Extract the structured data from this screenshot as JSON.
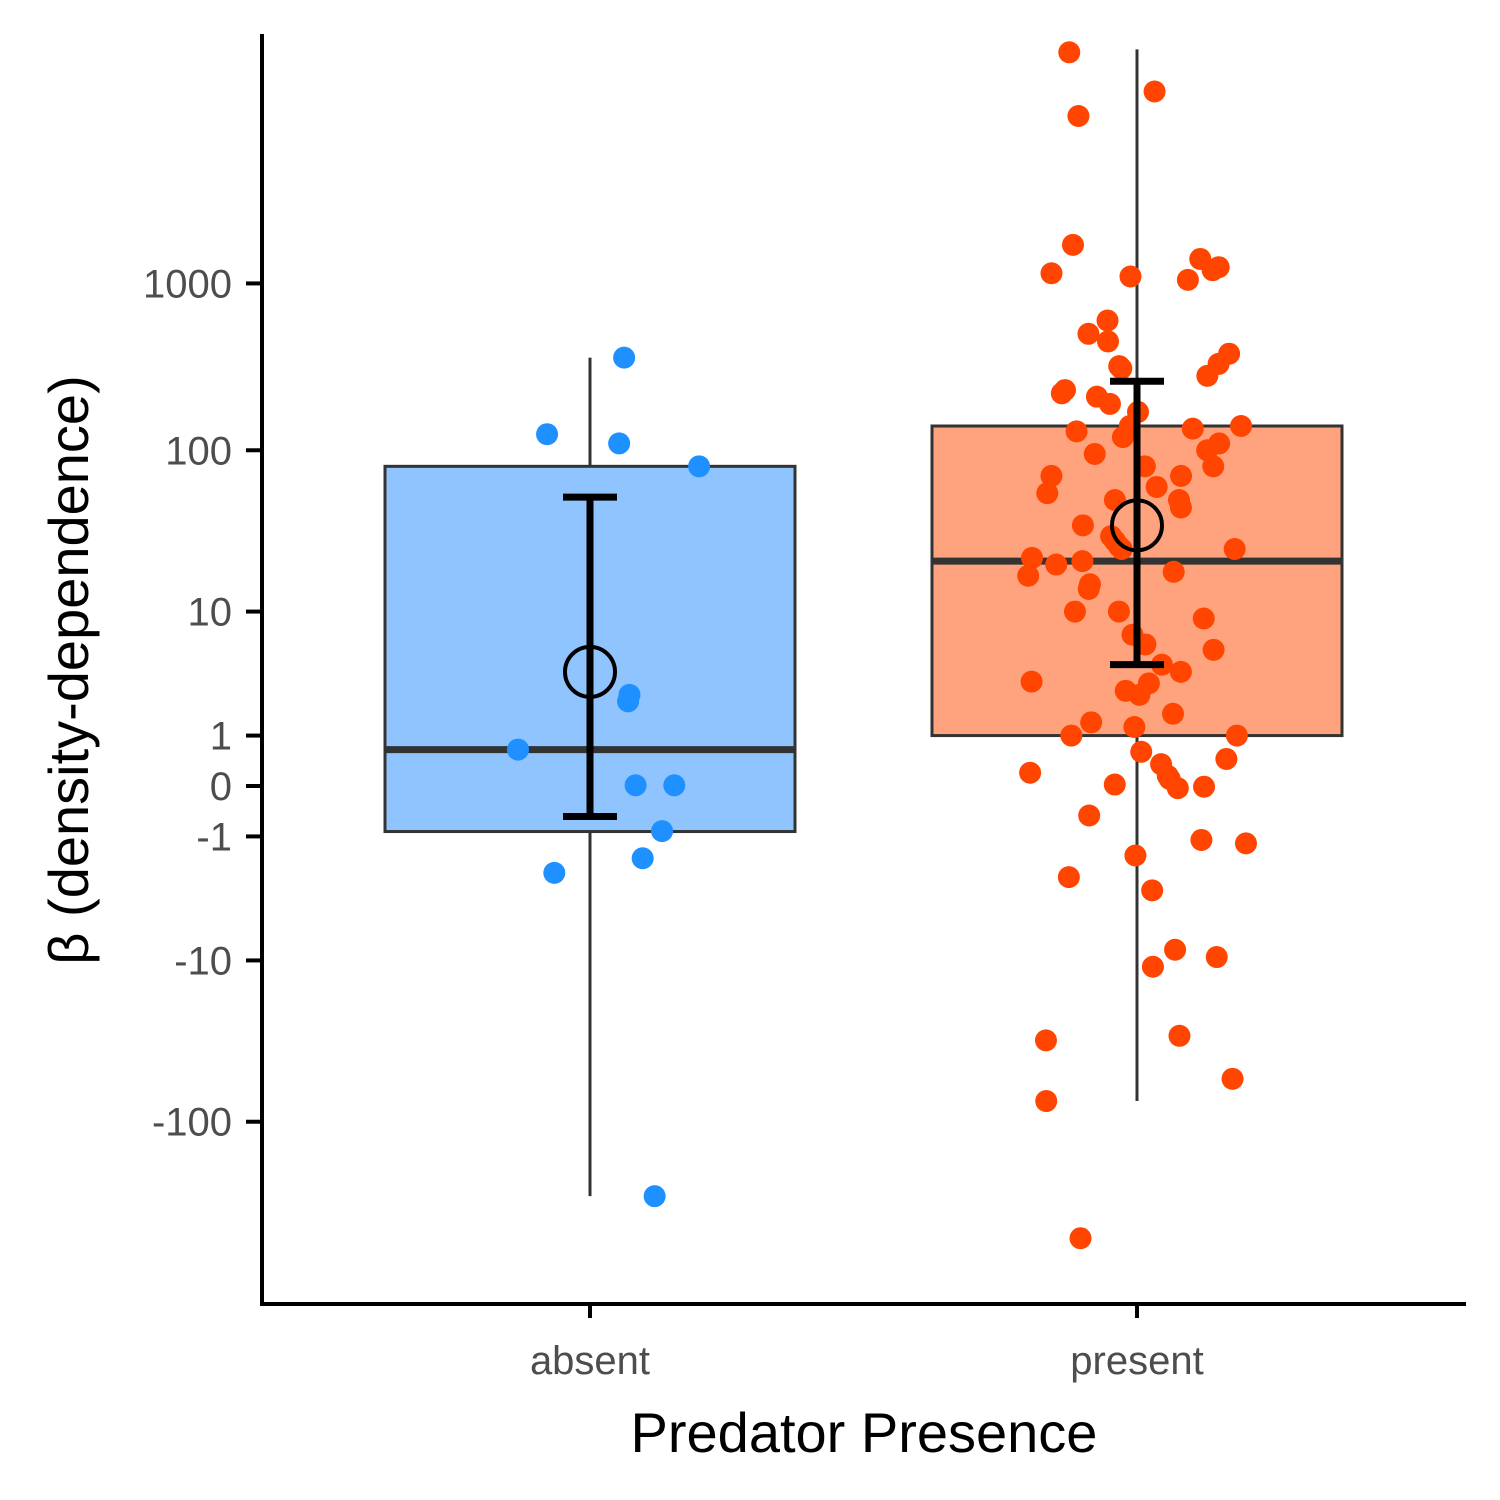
{
  "chart_data": {
    "type": "boxplot",
    "xlabel": "Predator Presence",
    "ylabel": "β (density-dependence)",
    "y_scale": "pseudo-log (signed log10(1+|y|))",
    "categories": [
      "absent",
      "present"
    ],
    "y_ticks": [
      -100,
      -10,
      -1,
      0,
      1,
      10,
      100,
      1000
    ],
    "y_tick_labels": [
      "-100",
      "-10",
      "-1",
      "0",
      "1",
      "10",
      "100",
      "1000"
    ],
    "ylim": [
      -600,
      30000
    ],
    "grid": false,
    "legend": "none",
    "colors": {
      "absent_fill": "#8fc4fe",
      "absent_points": "#1e90ff",
      "present_fill": "#ffa37f",
      "present_points": "#ff4500",
      "box_line": "#333333",
      "mean_error": "#000000"
    },
    "groups": [
      {
        "name": "absent",
        "box": {
          "whisker_low": -280,
          "q1": -0.87,
          "median": 0.65,
          "q3": 80,
          "whisker_high": 360
        },
        "mean": 3.8,
        "error_bar": [
          -0.52,
          52
        ],
        "points": [
          360,
          125,
          110,
          80,
          2.5,
          2.2,
          0.65,
          0.01,
          0.01,
          -0.86,
          -1.7,
          -2.3,
          -280
        ]
      },
      {
        "name": "present",
        "box": {
          "whisker_low": -75,
          "q1": 1.0,
          "median": 21,
          "q3": 140,
          "whisker_high": 25000
        },
        "mean": 35,
        "error_bar": [
          4.3,
          260
        ],
        "points": [
          24000,
          14000,
          10000,
          1700,
          1400,
          1250,
          1200,
          1150,
          1100,
          1050,
          600,
          500,
          450,
          380,
          330,
          320,
          310,
          280,
          230,
          220,
          210,
          190,
          170,
          140,
          140,
          135,
          130,
          120,
          110,
          100,
          95,
          80,
          80,
          70,
          70,
          60,
          55,
          50,
          50,
          45,
          35,
          30,
          28,
          26,
          25,
          25,
          22,
          21,
          20,
          18,
          17,
          15,
          14,
          10,
          10,
          9,
          7,
          6,
          5.5,
          4.3,
          3.8,
          3.2,
          3.1,
          2.7,
          2.5,
          1.7,
          1.4,
          1.25,
          1.0,
          1.0,
          0.6,
          0.45,
          0.35,
          0.2,
          0.15,
          0.1,
          0.02,
          -0.01,
          -0.03,
          -0.5,
          -1.1,
          -1.2,
          -1.6,
          -2.5,
          -3.2,
          -8.5,
          -9.5,
          -11,
          -30,
          -32,
          -55,
          -75,
          -500
        ]
      }
    ]
  }
}
